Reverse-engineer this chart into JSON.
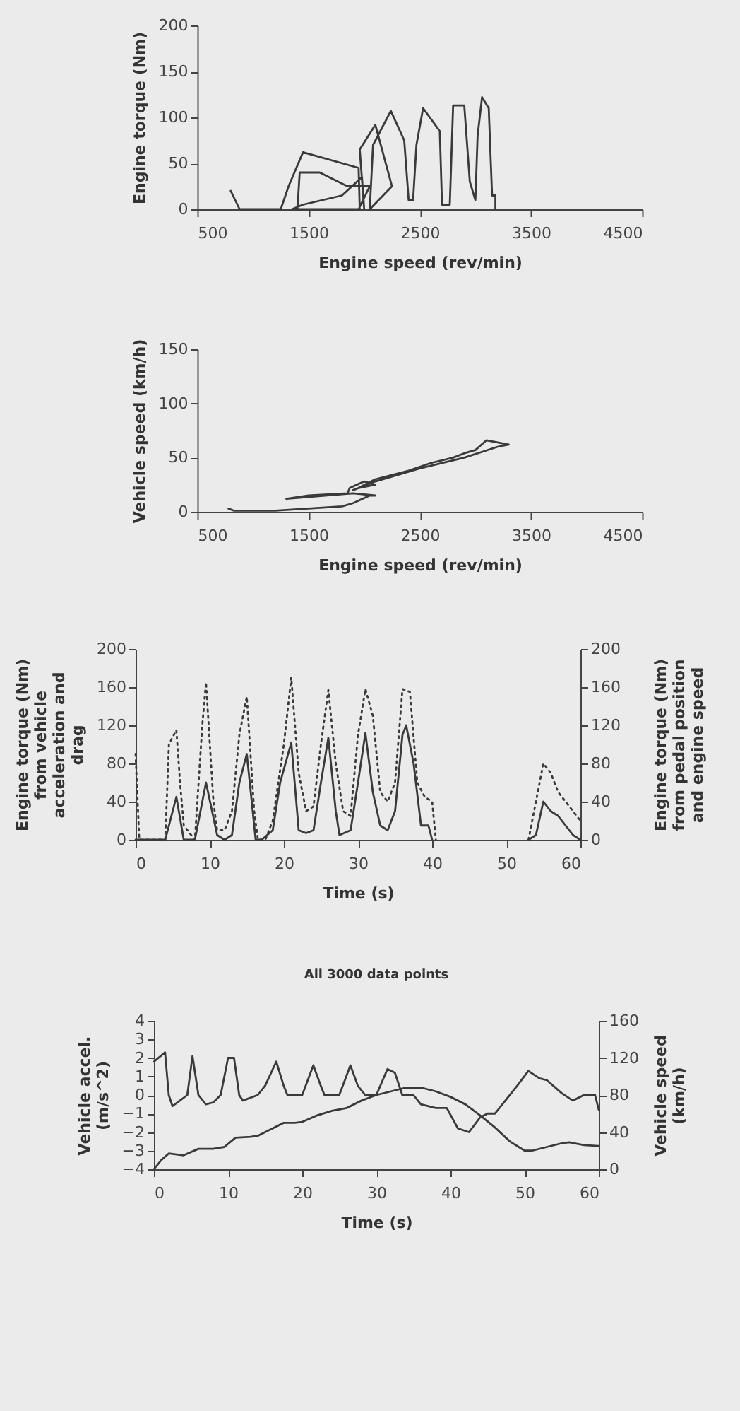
{
  "chart_data": [
    {
      "type": "line",
      "xlabel": "Engine speed (rev/min)",
      "ylabel": "Engine torque (Nm)",
      "xlim": [
        500,
        4500
      ],
      "xticks": [
        500,
        1500,
        2500,
        3500,
        4500
      ],
      "ylim": [
        0,
        200
      ],
      "yticks": [
        0,
        50,
        100,
        150,
        200
      ],
      "series": [
        {
          "color": "#3a3a3a",
          "x": [
            800,
            880,
            1250,
            1320,
            1450,
            1950,
            1960,
            1400,
            1420,
            1600,
            1850,
            2050,
            1950,
            1350,
            1450,
            1800,
            1980,
            2000,
            1960,
            2100,
            2250,
            2050,
            2080,
            2240,
            2360,
            2400,
            2440,
            2470,
            2530,
            2680,
            2700,
            2770,
            2800,
            2900,
            2950,
            3000,
            3020,
            3060,
            3120,
            3150,
            3180,
            3180
          ],
          "values": [
            20,
            0,
            0,
            25,
            62,
            45,
            0,
            0,
            40,
            40,
            25,
            25,
            0,
            0,
            5,
            15,
            35,
            0,
            65,
            92,
            25,
            0,
            70,
            107,
            75,
            10,
            10,
            70,
            110,
            85,
            5,
            5,
            113,
            113,
            30,
            10,
            80,
            122,
            110,
            15,
            15,
            0
          ]
        }
      ]
    },
    {
      "type": "line",
      "xlabel": "Engine speed (rev/min)",
      "ylabel": "Vehicle speed (km/h)",
      "xlim": [
        500,
        4500
      ],
      "xticks": [
        500,
        1500,
        2500,
        3500,
        4500
      ],
      "ylim": [
        0,
        150
      ],
      "yticks": [
        0,
        50,
        100,
        150
      ],
      "series": [
        {
          "color": "#3a3a3a",
          "x": [
            780,
            830,
            1200,
            1500,
            1800,
            1900,
            2050,
            2100,
            1900,
            1300,
            1500,
            1850,
            1870,
            2000,
            2100,
            1950,
            2100,
            2400,
            2600,
            2800,
            2900,
            3000,
            3100,
            3200,
            3300,
            3200,
            2900,
            2500,
            2100,
            2000,
            1900
          ],
          "values": [
            3,
            1,
            1,
            3,
            5,
            8,
            15,
            15,
            17,
            12,
            15,
            17,
            22,
            28,
            25,
            22,
            30,
            38,
            45,
            50,
            54,
            57,
            66,
            64,
            62,
            60,
            50,
            40,
            28,
            24,
            20
          ]
        }
      ]
    },
    {
      "type": "line",
      "xlabel": "Time (s)",
      "ylabel": "Engine torque (Nm) from vehicle acceleration and drag",
      "y2label": "Engine torque (Nm) from pedal position and engine speed",
      "xlim": [
        0,
        60
      ],
      "xticks": [
        0,
        10,
        20,
        30,
        40,
        50,
        60
      ],
      "ylim": [
        0,
        200
      ],
      "yticks": [
        0,
        40,
        80,
        120,
        160,
        200
      ],
      "y2lim": [
        0,
        200
      ],
      "y2ticks": [
        0,
        40,
        80,
        120,
        160,
        200
      ],
      "series": [
        {
          "color": "#3a3a3a",
          "line_style": "solid",
          "x": [
            0,
            4,
            5.5,
            6.5,
            8,
            9.5,
            11,
            12,
            13,
            14,
            15,
            16.2,
            17,
            18.5,
            19.5,
            21,
            22,
            23,
            24,
            25,
            26,
            27,
            27.5,
            29,
            30,
            31,
            32,
            33,
            34,
            35,
            36,
            36.5,
            37.5,
            38.5,
            39.5,
            40,
            47,
            53,
            54,
            55,
            56,
            57,
            58,
            59,
            60
          ],
          "values": [
            0,
            0,
            45,
            0,
            0,
            60,
            5,
            0,
            5,
            60,
            90,
            0,
            0,
            10,
            60,
            102,
            10,
            7,
            10,
            60,
            107,
            30,
            5,
            10,
            60,
            112,
            50,
            15,
            10,
            30,
            110,
            120,
            80,
            15,
            15,
            0,
            null,
            0,
            5,
            40,
            30,
            25,
            15,
            5,
            0
          ]
        },
        {
          "color": "#3a3a3a",
          "line_style": "dotted",
          "axis": "y2",
          "x": [
            0,
            0.5,
            4,
            4.5,
            5.5,
            6,
            6.5,
            7,
            8,
            9,
            9.5,
            10.5,
            11,
            12,
            13,
            14,
            15,
            16,
            16.5,
            17.5,
            18.5,
            20,
            21,
            22,
            23,
            24,
            25,
            26,
            27,
            28,
            29,
            30,
            31,
            32,
            33,
            34,
            35,
            36,
            37,
            38,
            39,
            40,
            40.5,
            47,
            53,
            54,
            55,
            56,
            57,
            58,
            59,
            60
          ],
          "values": [
            90,
            0,
            0,
            100,
            115,
            60,
            15,
            10,
            0,
            120,
            165,
            40,
            10,
            10,
            30,
            110,
            150,
            30,
            0,
            0,
            20,
            100,
            170,
            70,
            30,
            35,
            100,
            157,
            80,
            30,
            25,
            110,
            158,
            130,
            50,
            40,
            60,
            158,
            155,
            60,
            45,
            40,
            0,
            null,
            0,
            40,
            80,
            70,
            50,
            40,
            30,
            20
          ]
        }
      ]
    },
    {
      "type": "line",
      "title": "All 3000 data points",
      "xlabel": "Time (s)",
      "ylabel": "Vehicle accel. (m/s^2)",
      "y2label": "Vehicle speed (km/h)",
      "xlim": [
        0,
        60
      ],
      "xticks": [
        0,
        10,
        20,
        30,
        40,
        50,
        60
      ],
      "ylim": [
        -4,
        4
      ],
      "yticks": [
        -4,
        -3,
        -2,
        -1,
        0,
        1,
        2,
        3,
        4
      ],
      "y2lim": [
        0,
        160
      ],
      "y2ticks": [
        0,
        40,
        80,
        120,
        160
      ],
      "series": [
        {
          "color": "#3a3a3a",
          "x": [
            0,
            1.5,
            2,
            2.5,
            3.5,
            4.5,
            5.2,
            6,
            7,
            8,
            9,
            10,
            10.8,
            11.5,
            12,
            14,
            15,
            16.5,
            17.5,
            18,
            20,
            21.5,
            22.5,
            23,
            25,
            26.5,
            27.5,
            28.5,
            30,
            31.5,
            32.5,
            33.5,
            35,
            36,
            38,
            39.5,
            41,
            42.5,
            44,
            45,
            46,
            47,
            49,
            50.5,
            52,
            53,
            55,
            56.5,
            58,
            59.5,
            60
          ],
          "values": [
            1.8,
            2.3,
            0,
            -0.6,
            -0.3,
            0,
            2.1,
            0,
            -0.5,
            -0.4,
            0,
            2,
            2,
            0,
            -0.3,
            0,
            0.5,
            1.8,
            0.5,
            0,
            0,
            1.6,
            0.5,
            0,
            0,
            1.6,
            0.5,
            0,
            0,
            1.4,
            1.2,
            0,
            0,
            -0.5,
            -0.7,
            -0.7,
            -1.8,
            -2,
            -1.2,
            -1,
            -1,
            -0.5,
            0.5,
            1.3,
            0.9,
            0.8,
            0.1,
            -0.3,
            0,
            0,
            -0.8
          ]
        },
        {
          "color": "#3a3a3a",
          "axis": "y2",
          "x": [
            0,
            1,
            2,
            4,
            6,
            8,
            9.5,
            11,
            13,
            14,
            16,
            17.5,
            19,
            20,
            22,
            24,
            26,
            28,
            30,
            32,
            34,
            36,
            38,
            40,
            42,
            44,
            46,
            48,
            50,
            51,
            53,
            55,
            56,
            58,
            60
          ],
          "values": [
            0,
            10,
            17,
            15,
            22,
            22,
            24,
            34,
            35,
            36,
            44,
            50,
            50,
            51,
            58,
            63,
            66,
            74,
            80,
            84,
            88,
            88,
            84,
            78,
            70,
            58,
            45,
            30,
            20,
            20,
            24,
            28,
            29,
            26,
            25
          ]
        }
      ]
    }
  ]
}
